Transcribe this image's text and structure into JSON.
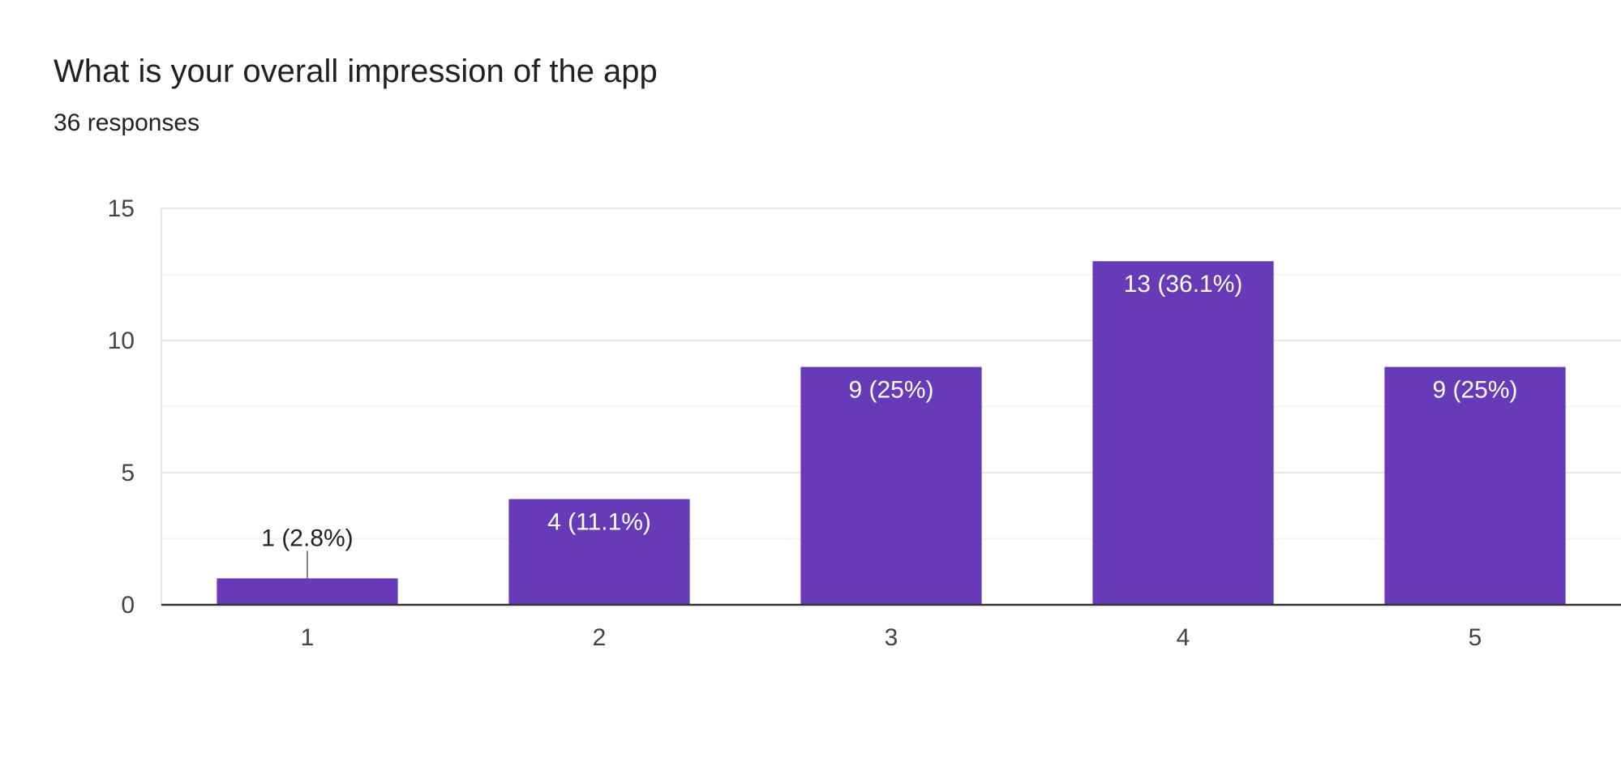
{
  "question": {
    "title": "What is your overall impression of the app",
    "responses": "36 responses"
  },
  "colors": {
    "bar": "#673ab7",
    "grid": "#ebebeb",
    "axis": "#333333",
    "text": "#202124"
  },
  "chart_data": {
    "type": "bar",
    "title": "What is your overall impression of the app",
    "xlabel": "",
    "ylabel": "",
    "categories": [
      "1",
      "2",
      "3",
      "4",
      "5"
    ],
    "values": [
      1,
      4,
      9,
      13,
      9
    ],
    "data_labels": [
      "1 (2.8%)",
      "4 (11.1%)",
      "9 (25%)",
      "13 (36.1%)",
      "9 (25%)"
    ],
    "ylim": [
      0,
      15
    ],
    "yticks": [
      "0",
      "5",
      "10",
      "15"
    ],
    "ytick_values": [
      0,
      5,
      10,
      15
    ],
    "grid": true
  }
}
